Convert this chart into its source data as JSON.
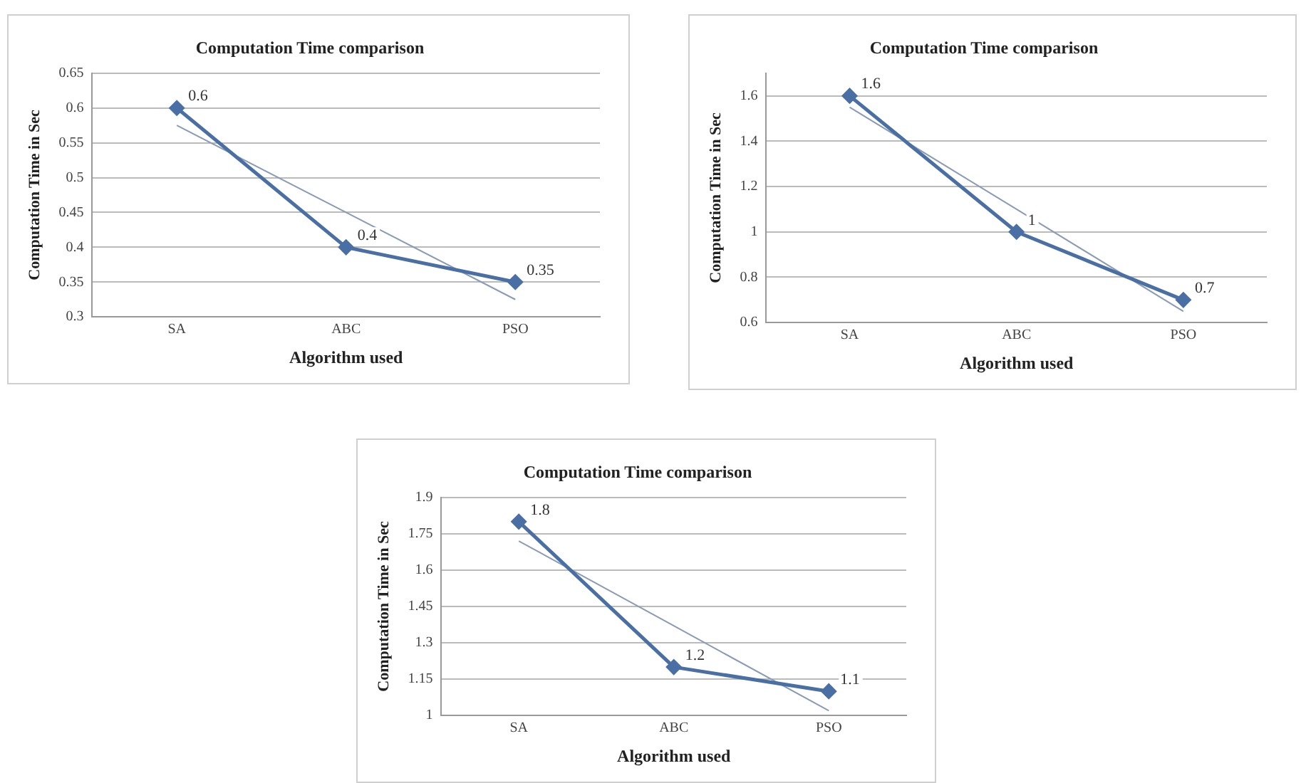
{
  "chart_data": [
    {
      "type": "line",
      "title": "Computation Time comparison",
      "xlabel": "Algorithm used",
      "ylabel": "Computation Time in Sec",
      "categories": [
        "SA",
        "ABC",
        "PSO"
      ],
      "series": [
        {
          "color": "#4a6fa5",
          "values": [
            0.6,
            0.4,
            0.35
          ],
          "value_labels": [
            "0.6",
            "0.4",
            "0.35"
          ]
        },
        {
          "type": "line",
          "color": "#8a9bb5",
          "marker": "none",
          "values": [
            0.575,
            0.45,
            0.325
          ]
        }
      ],
      "ylim": [
        0.3,
        0.65
      ],
      "yticks": [
        0.3,
        0.35,
        0.4,
        0.45,
        0.5,
        0.55,
        0.6,
        0.65
      ],
      "grid": "y",
      "legend": false,
      "marker": "diamond"
    },
    {
      "type": "line",
      "title": "Computation Time comparison",
      "xlabel": "Algorithm used",
      "ylabel": "Computation Time in Sec",
      "categories": [
        "SA",
        "ABC",
        "PSO"
      ],
      "series": [
        {
          "color": "#4a6fa5",
          "values": [
            1.6,
            1,
            0.7
          ],
          "value_labels": [
            "1.6",
            "1",
            "0.7"
          ]
        },
        {
          "type": "line",
          "color": "#8a9bb5",
          "marker": "none",
          "values": [
            1.55,
            1.1,
            0.65
          ]
        }
      ],
      "ylim": [
        0.6,
        1.7
      ],
      "yticks": [
        0.6,
        0.8,
        1,
        1.2,
        1.4,
        1.6
      ],
      "grid": "y",
      "legend": false,
      "marker": "diamond"
    },
    {
      "type": "line",
      "title": "Computation Time comparison",
      "xlabel": "Algorithm used",
      "ylabel": "Computation Time in Sec",
      "categories": [
        "SA",
        "ABC",
        "PSO"
      ],
      "series": [
        {
          "color": "#4a6fa5",
          "values": [
            1.8,
            1.2,
            1.1
          ],
          "value_labels": [
            "1.8",
            "1.2",
            "1.1"
          ]
        },
        {
          "type": "line",
          "color": "#8a9bb5",
          "marker": "none",
          "values": [
            1.72,
            1.37,
            1.02
          ]
        }
      ],
      "ylim": [
        1,
        1.9
      ],
      "yticks": [
        1,
        1.15,
        1.3,
        1.45,
        1.6,
        1.75,
        1.9
      ],
      "grid": "y",
      "legend": false,
      "marker": "diamond"
    }
  ]
}
